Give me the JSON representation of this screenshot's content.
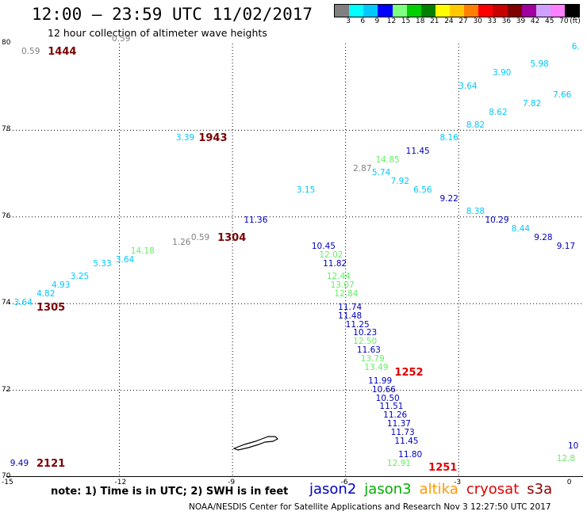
{
  "header": {
    "title": "12:00 – 23:59 UTC 11/02/2017",
    "subtitle": "12 hour collection of altimeter wave heights"
  },
  "colorbar": {
    "colors": [
      "#808080",
      "#00ffff",
      "#00c8ff",
      "#0000ff",
      "#7fff7f",
      "#00d000",
      "#008000",
      "#ffff00",
      "#ffc800",
      "#ff8000",
      "#ff0000",
      "#c80000",
      "#800000",
      "#a000a0",
      "#d0a0ff",
      "#ff80ff",
      "#000000"
    ],
    "labels": [
      "3",
      "6",
      "9",
      "12",
      "15",
      "18",
      "21",
      "24",
      "27",
      "30",
      "33",
      "36",
      "39",
      "42",
      "45",
      "70"
    ],
    "unit": "(ft)"
  },
  "map": {
    "lon_min": -15,
    "lon_max": 0.3,
    "lat_min": 70,
    "lat_max": 80,
    "lat_ticks": [
      {
        "v": 80,
        "label": "80"
      },
      {
        "v": 78,
        "label": "78"
      },
      {
        "v": 76,
        "label": "76"
      },
      {
        "v": 74,
        "label": "74"
      },
      {
        "v": 72,
        "label": "72"
      },
      {
        "v": 70,
        "label": "70"
      }
    ],
    "lon_ticks": [
      {
        "v": -15,
        "label": "-15"
      },
      {
        "v": -12,
        "label": "-12"
      },
      {
        "v": -9,
        "label": "-9"
      },
      {
        "v": -6,
        "label": "-6"
      },
      {
        "v": -3,
        "label": "-3"
      },
      {
        "v": 0,
        "label": "0"
      }
    ],
    "grid_lats": [
      78,
      76,
      74,
      72
    ],
    "grid_lons": [
      -12,
      -9,
      -6,
      -3
    ],
    "observations": [
      {
        "text": "0.59",
        "lon": -14.6,
        "lat": 79.8,
        "color": "#808080"
      },
      {
        "text": "0.59",
        "lon": -12.2,
        "lat": 80.1,
        "color": "#808080"
      },
      {
        "text": "3.39",
        "lon": -10.5,
        "lat": 77.8,
        "color": "#00c8ff"
      },
      {
        "text": "1.26",
        "lon": -10.6,
        "lat": 75.4,
        "color": "#808080"
      },
      {
        "text": "0.59",
        "lon": -10.1,
        "lat": 75.5,
        "color": "#808080"
      },
      {
        "text": "14.18",
        "lon": -11.7,
        "lat": 75.2,
        "color": "#66ee66"
      },
      {
        "text": "3.64",
        "lon": -12.1,
        "lat": 75.0,
        "color": "#00c8ff"
      },
      {
        "text": "5.33",
        "lon": -12.7,
        "lat": 74.9,
        "color": "#00c8ff"
      },
      {
        "text": "3.25",
        "lon": -13.3,
        "lat": 74.6,
        "color": "#00c8ff"
      },
      {
        "text": "4.93",
        "lon": -13.8,
        "lat": 74.4,
        "color": "#00c8ff"
      },
      {
        "text": "4.82",
        "lon": -14.2,
        "lat": 74.2,
        "color": "#00c8ff"
      },
      {
        "text": "3.64",
        "lon": -14.8,
        "lat": 74.0,
        "color": "#00c8ff"
      },
      {
        "text": "11.36",
        "lon": -8.7,
        "lat": 75.9,
        "color": "#0000c0"
      },
      {
        "text": "3.15",
        "lon": -7.3,
        "lat": 76.6,
        "color": "#00c8ff"
      },
      {
        "text": "2.87",
        "lon": -5.8,
        "lat": 77.1,
        "color": "#808080"
      },
      {
        "text": "14.85",
        "lon": -5.2,
        "lat": 77.3,
        "color": "#66ee66"
      },
      {
        "text": "5.74",
        "lon": -5.3,
        "lat": 77.0,
        "color": "#00c8ff"
      },
      {
        "text": "11.45",
        "lon": -4.4,
        "lat": 77.5,
        "color": "#0000c0"
      },
      {
        "text": "7.92",
        "lon": -4.8,
        "lat": 76.8,
        "color": "#00c8ff"
      },
      {
        "text": "6.56",
        "lon": -4.2,
        "lat": 76.6,
        "color": "#00c8ff"
      },
      {
        "text": "8.16",
        "lon": -3.5,
        "lat": 77.8,
        "color": "#00c8ff"
      },
      {
        "text": "9.22",
        "lon": -3.5,
        "lat": 76.4,
        "color": "#0000c0"
      },
      {
        "text": "8.38",
        "lon": -2.8,
        "lat": 76.1,
        "color": "#00c8ff"
      },
      {
        "text": "8.82",
        "lon": -2.8,
        "lat": 78.1,
        "color": "#00c8ff"
      },
      {
        "text": "10.29",
        "lon": -2.3,
        "lat": 75.9,
        "color": "#0000c0"
      },
      {
        "text": "8.62",
        "lon": -2.2,
        "lat": 78.4,
        "color": "#00c8ff"
      },
      {
        "text": "8.44",
        "lon": -1.6,
        "lat": 75.7,
        "color": "#00c8ff"
      },
      {
        "text": "3.64",
        "lon": -3.0,
        "lat": 79.0,
        "color": "#00c8ff"
      },
      {
        "text": "3.90",
        "lon": -2.1,
        "lat": 79.3,
        "color": "#00c8ff"
      },
      {
        "text": "7.82",
        "lon": -1.3,
        "lat": 78.6,
        "color": "#00c8ff"
      },
      {
        "text": "9.28",
        "lon": -1.0,
        "lat": 75.5,
        "color": "#0000c0"
      },
      {
        "text": "5.98",
        "lon": -1.1,
        "lat": 79.5,
        "color": "#00c8ff"
      },
      {
        "text": "7.66",
        "lon": -0.5,
        "lat": 78.8,
        "color": "#00c8ff"
      },
      {
        "text": "9.17",
        "lon": -0.4,
        "lat": 75.3,
        "color": "#0000c0"
      },
      {
        "text": "6.",
        "lon": 0.0,
        "lat": 79.9,
        "color": "#00c8ff"
      },
      {
        "text": "10.45",
        "lon": -6.9,
        "lat": 75.3,
        "color": "#0000c0"
      },
      {
        "text": "12.02",
        "lon": -6.7,
        "lat": 75.1,
        "color": "#66ee66"
      },
      {
        "text": "11.82",
        "lon": -6.6,
        "lat": 74.9,
        "color": "#0000c0"
      },
      {
        "text": "12.44",
        "lon": -6.5,
        "lat": 74.6,
        "color": "#66ee66"
      },
      {
        "text": "13.07",
        "lon": -6.4,
        "lat": 74.4,
        "color": "#66ee66"
      },
      {
        "text": "12.84",
        "lon": -6.3,
        "lat": 74.2,
        "color": "#66ee66"
      },
      {
        "text": "11.74",
        "lon": -6.2,
        "lat": 73.9,
        "color": "#0000c0"
      },
      {
        "text": "11.48",
        "lon": -6.2,
        "lat": 73.7,
        "color": "#0000c0"
      },
      {
        "text": "11.25",
        "lon": -6.0,
        "lat": 73.5,
        "color": "#0000c0"
      },
      {
        "text": "10.23",
        "lon": -5.8,
        "lat": 73.3,
        "color": "#0000c0"
      },
      {
        "text": "12.50",
        "lon": -5.8,
        "lat": 73.1,
        "color": "#66ee66"
      },
      {
        "text": "11.63",
        "lon": -5.7,
        "lat": 72.9,
        "color": "#0000c0"
      },
      {
        "text": "13.79",
        "lon": -5.6,
        "lat": 72.7,
        "color": "#66ee66"
      },
      {
        "text": "13.49",
        "lon": -5.5,
        "lat": 72.5,
        "color": "#66ee66"
      },
      {
        "text": "11.99",
        "lon": -5.4,
        "lat": 72.2,
        "color": "#0000c0"
      },
      {
        "text": "10.66",
        "lon": -5.3,
        "lat": 72.0,
        "color": "#0000c0"
      },
      {
        "text": "10.50",
        "lon": -5.2,
        "lat": 71.8,
        "color": "#0000c0"
      },
      {
        "text": "11.51",
        "lon": -5.1,
        "lat": 71.6,
        "color": "#0000c0"
      },
      {
        "text": "11.26",
        "lon": -5.0,
        "lat": 71.4,
        "color": "#0000c0"
      },
      {
        "text": "11.37",
        "lon": -4.9,
        "lat": 71.2,
        "color": "#0000c0"
      },
      {
        "text": "11.73",
        "lon": -4.8,
        "lat": 71.0,
        "color": "#0000c0"
      },
      {
        "text": "11.45",
        "lon": -4.7,
        "lat": 70.8,
        "color": "#0000c0"
      },
      {
        "text": "11.80",
        "lon": -4.6,
        "lat": 70.5,
        "color": "#0000c0"
      },
      {
        "text": "12.91",
        "lon": -4.9,
        "lat": 70.3,
        "color": "#66ee66"
      },
      {
        "text": "9.49",
        "lon": -14.9,
        "lat": 70.3,
        "color": "#0000c0"
      },
      {
        "text": "10",
        "lon": -0.1,
        "lat": 70.7,
        "color": "#0000c0"
      },
      {
        "text": "12.8",
        "lon": -0.4,
        "lat": 70.4,
        "color": "#66ee66"
      }
    ],
    "times": [
      {
        "text": "1444",
        "lon": -13.9,
        "lat": 79.8,
        "color": "#7a0000"
      },
      {
        "text": "1943",
        "lon": -9.9,
        "lat": 77.8,
        "color": "#7a0000"
      },
      {
        "text": "1304",
        "lon": -9.4,
        "lat": 75.5,
        "color": "#7a0000"
      },
      {
        "text": "1305",
        "lon": -14.2,
        "lat": 73.9,
        "color": "#7a0000"
      },
      {
        "text": "1252",
        "lon": -4.7,
        "lat": 72.4,
        "color": "#e00000"
      },
      {
        "text": "1251",
        "lon": -3.8,
        "lat": 70.2,
        "color": "#e00000"
      },
      {
        "text": "2121",
        "lon": -14.2,
        "lat": 70.3,
        "color": "#7a0000"
      }
    ]
  },
  "note": "note: 1) Time is in UTC; 2) SWH is in feet",
  "legend": [
    {
      "label": "jason2",
      "color": "#0000c0"
    },
    {
      "label": "jason3",
      "color": "#00b000"
    },
    {
      "label": "altika",
      "color": "#ff9900"
    },
    {
      "label": "cryosat",
      "color": "#e00000"
    },
    {
      "label": "s3a",
      "color": "#8b0000"
    }
  ],
  "footer": "NOAA/NESDIS Center for Satellite Applications and Research   Nov  3 12:27:50 UTC 2017"
}
